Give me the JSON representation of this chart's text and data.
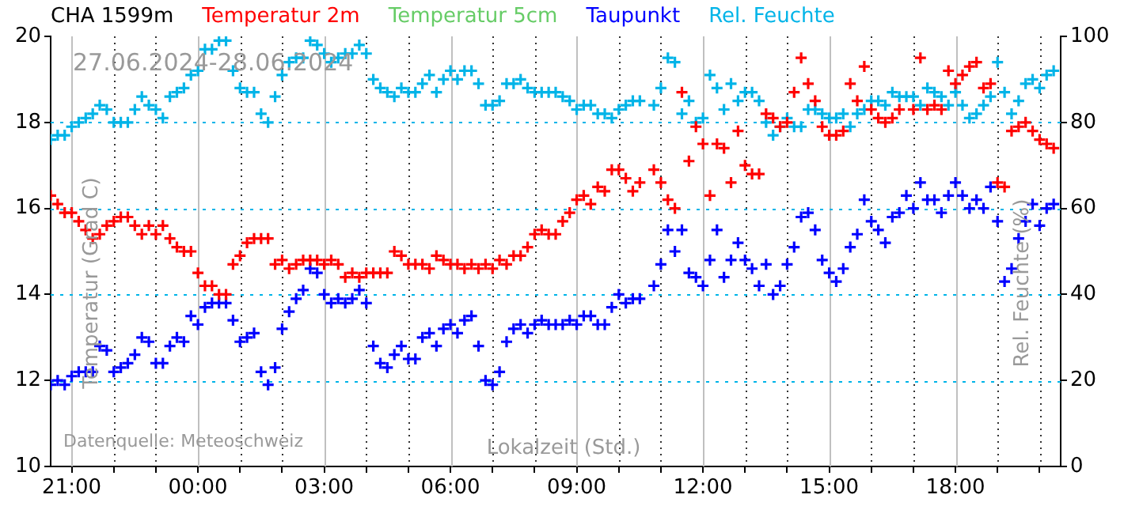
{
  "chart_data": {
    "type": "scatter",
    "title": "CHA  1599m",
    "xlabel": "Lokalzeit (Std.)",
    "ylabel": "Temperatur (Grad C)",
    "y2label": "Rel. Feuchte (%)",
    "annotations": [
      "27.06.2024-28.06.2024",
      "Datenquelle: Meteoschweiz"
    ],
    "xlim": [
      "2024-06-27T20:30",
      "2024-06-28T20:30"
    ],
    "xticks": [
      {
        "value": "2024-06-27T21:00",
        "label": "21:00"
      },
      {
        "value": "2024-06-27T22:00",
        "label": null
      },
      {
        "value": "2024-06-27T23:00",
        "label": null
      },
      {
        "value": "2024-06-28T00:00",
        "label": "00:00"
      },
      {
        "value": "2024-06-28T01:00",
        "label": null
      },
      {
        "value": "2024-06-28T02:00",
        "label": null
      },
      {
        "value": "2024-06-28T03:00",
        "label": "03:00"
      },
      {
        "value": "2024-06-28T04:00",
        "label": null
      },
      {
        "value": "2024-06-28T05:00",
        "label": null
      },
      {
        "value": "2024-06-28T06:00",
        "label": "06:00"
      },
      {
        "value": "2024-06-28T07:00",
        "label": null
      },
      {
        "value": "2024-06-28T08:00",
        "label": null
      },
      {
        "value": "2024-06-28T09:00",
        "label": "09:00"
      },
      {
        "value": "2024-06-28T10:00",
        "label": null
      },
      {
        "value": "2024-06-28T11:00",
        "label": null
      },
      {
        "value": "2024-06-28T12:00",
        "label": "12:00"
      },
      {
        "value": "2024-06-28T13:00",
        "label": null
      },
      {
        "value": "2024-06-28T14:00",
        "label": null
      },
      {
        "value": "2024-06-28T15:00",
        "label": "15:00"
      },
      {
        "value": "2024-06-28T16:00",
        "label": null
      },
      {
        "value": "2024-06-28T17:00",
        "label": null
      },
      {
        "value": "2024-06-28T18:00",
        "label": "18:00"
      },
      {
        "value": "2024-06-28T19:00",
        "label": null
      },
      {
        "value": "2024-06-28T20:00",
        "label": null
      }
    ],
    "ylim": [
      10,
      20
    ],
    "yticks": [
      10,
      12,
      14,
      16,
      18,
      20
    ],
    "y2lim": [
      0,
      100
    ],
    "y2ticks": [
      0,
      20,
      40,
      60,
      80,
      100
    ],
    "grid": true,
    "legend": "top",
    "marker": "cross",
    "x": [
      "2024-06-27T20:30",
      "2024-06-27T20:40",
      "2024-06-27T20:50",
      "2024-06-27T21:00",
      "2024-06-27T21:10",
      "2024-06-27T21:20",
      "2024-06-27T21:30",
      "2024-06-27T21:40",
      "2024-06-27T21:50",
      "2024-06-27T22:00",
      "2024-06-27T22:10",
      "2024-06-27T22:20",
      "2024-06-27T22:30",
      "2024-06-27T22:40",
      "2024-06-27T22:50",
      "2024-06-27T23:00",
      "2024-06-27T23:10",
      "2024-06-27T23:20",
      "2024-06-27T23:30",
      "2024-06-27T23:40",
      "2024-06-27T23:50",
      "2024-06-28T00:00",
      "2024-06-28T00:10",
      "2024-06-28T00:20",
      "2024-06-28T00:30",
      "2024-06-28T00:40",
      "2024-06-28T00:50",
      "2024-06-28T01:00",
      "2024-06-28T01:10",
      "2024-06-28T01:20",
      "2024-06-28T01:30",
      "2024-06-28T01:40",
      "2024-06-28T01:50",
      "2024-06-28T02:00",
      "2024-06-28T02:10",
      "2024-06-28T02:20",
      "2024-06-28T02:30",
      "2024-06-28T02:40",
      "2024-06-28T02:50",
      "2024-06-28T03:00",
      "2024-06-28T03:10",
      "2024-06-28T03:20",
      "2024-06-28T03:30",
      "2024-06-28T03:40",
      "2024-06-28T03:50",
      "2024-06-28T04:00",
      "2024-06-28T04:10",
      "2024-06-28T04:20",
      "2024-06-28T04:30",
      "2024-06-28T04:40",
      "2024-06-28T04:50",
      "2024-06-28T05:00",
      "2024-06-28T05:10",
      "2024-06-28T05:20",
      "2024-06-28T05:30",
      "2024-06-28T05:40",
      "2024-06-28T05:50",
      "2024-06-28T06:00",
      "2024-06-28T06:10",
      "2024-06-28T06:20",
      "2024-06-28T06:30",
      "2024-06-28T06:40",
      "2024-06-28T06:50",
      "2024-06-28T07:00",
      "2024-06-28T07:10",
      "2024-06-28T07:20",
      "2024-06-28T07:30",
      "2024-06-28T07:40",
      "2024-06-28T07:50",
      "2024-06-28T08:00",
      "2024-06-28T08:10",
      "2024-06-28T08:20",
      "2024-06-28T08:30",
      "2024-06-28T08:40",
      "2024-06-28T08:50",
      "2024-06-28T09:00",
      "2024-06-28T09:10",
      "2024-06-28T09:20",
      "2024-06-28T09:30",
      "2024-06-28T09:40",
      "2024-06-28T09:50",
      "2024-06-28T10:00",
      "2024-06-28T10:10",
      "2024-06-28T10:20",
      "2024-06-28T10:30",
      "2024-06-28T10:40",
      "2024-06-28T10:50",
      "2024-06-28T11:00",
      "2024-06-28T11:10",
      "2024-06-28T11:20",
      "2024-06-28T11:30",
      "2024-06-28T11:40",
      "2024-06-28T11:50",
      "2024-06-28T12:00",
      "2024-06-28T12:10",
      "2024-06-28T12:20",
      "2024-06-28T12:30",
      "2024-06-28T12:40",
      "2024-06-28T12:50",
      "2024-06-28T13:00",
      "2024-06-28T13:10",
      "2024-06-28T13:20",
      "2024-06-28T13:30",
      "2024-06-28T13:40",
      "2024-06-28T13:50",
      "2024-06-28T14:00",
      "2024-06-28T14:10",
      "2024-06-28T14:20",
      "2024-06-28T14:30",
      "2024-06-28T14:40",
      "2024-06-28T14:50",
      "2024-06-28T15:00",
      "2024-06-28T15:10",
      "2024-06-28T15:20",
      "2024-06-28T15:30",
      "2024-06-28T15:40",
      "2024-06-28T15:50",
      "2024-06-28T16:00",
      "2024-06-28T16:10",
      "2024-06-28T16:20",
      "2024-06-28T16:30",
      "2024-06-28T16:40",
      "2024-06-28T16:50",
      "2024-06-28T17:00",
      "2024-06-28T17:10",
      "2024-06-28T17:20",
      "2024-06-28T17:30",
      "2024-06-28T17:40",
      "2024-06-28T17:50",
      "2024-06-28T18:00",
      "2024-06-28T18:10",
      "2024-06-28T18:20",
      "2024-06-28T18:30",
      "2024-06-28T18:40",
      "2024-06-28T18:50",
      "2024-06-28T19:00",
      "2024-06-28T19:10",
      "2024-06-28T19:20",
      "2024-06-28T19:30",
      "2024-06-28T19:40",
      "2024-06-28T19:50",
      "2024-06-28T20:00",
      "2024-06-28T20:10",
      "2024-06-28T20:20"
    ],
    "series": [
      {
        "name": "Temperatur 2m",
        "color": "#ff0000",
        "values": [
          16.3,
          16.1,
          15.9,
          15.9,
          15.7,
          15.5,
          15.3,
          15.4,
          15.6,
          15.7,
          15.8,
          15.8,
          15.6,
          15.4,
          15.6,
          15.4,
          15.6,
          15.3,
          15.1,
          15.0,
          15.0,
          14.5,
          14.2,
          14.2,
          14.0,
          14.0,
          14.7,
          14.9,
          15.2,
          15.3,
          15.3,
          15.3,
          14.7,
          14.8,
          14.6,
          14.7,
          14.8,
          14.8,
          14.8,
          14.7,
          14.8,
          14.7,
          14.4,
          14.5,
          14.4,
          14.5,
          14.5,
          14.5,
          14.5,
          15.0,
          14.9,
          14.7,
          14.7,
          14.7,
          14.6,
          14.9,
          14.8,
          14.7,
          14.7,
          14.6,
          14.7,
          14.6,
          14.7,
          14.6,
          14.8,
          14.7,
          14.9,
          14.9,
          15.1,
          15.4,
          15.5,
          15.4,
          15.4,
          15.7,
          15.9,
          16.2,
          16.3,
          16.1,
          16.5,
          16.4,
          16.9,
          16.9,
          16.7,
          16.4,
          16.6,
          null,
          16.9,
          16.6,
          16.2,
          16.0,
          18.7,
          17.1,
          17.9,
          17.5,
          16.3,
          17.5,
          17.4,
          16.6,
          17.8,
          17.0,
          16.8,
          16.8,
          18.2,
          18.1,
          17.9,
          18.0,
          18.7,
          19.5,
          18.9,
          18.5,
          17.9,
          17.7,
          17.7,
          17.8,
          18.9,
          18.5,
          19.3,
          18.3,
          18.1,
          18.0,
          18.1,
          18.3,
          null,
          18.3,
          19.5,
          18.3,
          18.4,
          18.3,
          19.2,
          18.9,
          19.1,
          19.3,
          19.4,
          18.8,
          18.9,
          16.6,
          16.5,
          17.8,
          17.9,
          18.0,
          17.8,
          17.6,
          17.5,
          17.4
        ]
      },
      {
        "name": "Temperatur 5cm",
        "color": "#66cc66",
        "values": [
          null,
          null,
          null,
          null,
          null,
          null,
          null,
          null,
          null,
          null,
          null,
          null,
          null,
          null,
          null,
          null,
          null,
          null,
          null,
          null,
          null,
          null,
          null,
          null,
          null,
          null,
          null,
          null,
          null,
          null,
          null,
          null,
          null,
          null,
          null,
          null,
          null,
          null,
          null,
          null,
          null,
          null,
          null,
          null,
          null,
          null,
          null,
          null,
          null,
          null,
          null,
          null,
          null,
          null,
          null,
          null,
          null,
          null,
          null,
          null,
          null,
          null,
          null,
          null,
          null,
          null,
          null,
          null,
          null,
          null,
          null,
          null,
          null,
          null,
          null,
          null,
          null,
          null,
          null,
          null,
          null,
          null,
          null,
          null,
          null,
          null,
          null,
          null,
          null,
          null,
          null,
          null,
          null,
          null,
          null,
          null,
          null,
          null,
          null,
          null,
          null,
          null,
          null,
          null,
          null,
          null,
          null,
          null,
          null,
          null,
          null,
          null,
          null,
          null,
          null,
          null,
          null,
          null,
          null,
          null,
          null,
          null,
          null,
          null,
          null,
          null,
          null,
          null,
          null,
          null,
          null,
          null,
          null,
          null,
          null,
          null,
          null,
          null,
          null,
          null,
          null,
          null,
          null,
          null
        ]
      },
      {
        "name": "Taupunkt",
        "color": "#0000ff",
        "values": [
          11.9,
          12.0,
          11.9,
          12.1,
          12.2,
          12.2,
          12.2,
          12.8,
          12.7,
          12.2,
          12.3,
          12.4,
          12.6,
          13.0,
          12.9,
          12.4,
          12.4,
          12.8,
          13.0,
          12.9,
          13.5,
          13.3,
          13.7,
          13.8,
          13.8,
          13.8,
          13.4,
          12.9,
          13.0,
          13.1,
          12.2,
          11.9,
          12.3,
          13.2,
          13.6,
          13.9,
          14.1,
          14.6,
          14.5,
          14.0,
          13.8,
          13.9,
          13.8,
          13.9,
          14.1,
          13.8,
          12.8,
          12.4,
          12.3,
          12.6,
          12.8,
          12.5,
          12.5,
          13.0,
          13.1,
          12.8,
          13.2,
          13.3,
          13.1,
          13.4,
          13.5,
          12.8,
          12.0,
          11.9,
          12.2,
          12.9,
          13.2,
          13.3,
          13.1,
          13.3,
          13.4,
          13.3,
          13.3,
          13.3,
          13.4,
          13.3,
          13.5,
          13.5,
          13.3,
          13.3,
          13.7,
          14.0,
          13.8,
          13.9,
          13.9,
          null,
          14.2,
          14.7,
          15.5,
          15.0,
          15.5,
          14.5,
          14.4,
          14.2,
          14.8,
          15.5,
          14.4,
          14.8,
          15.2,
          14.8,
          14.6,
          14.2,
          14.7,
          14.0,
          14.2,
          14.7,
          15.1,
          15.8,
          15.9,
          15.5,
          14.8,
          14.5,
          14.3,
          14.6,
          15.1,
          15.4,
          16.2,
          15.7,
          15.5,
          15.2,
          15.8,
          15.9,
          16.3,
          16.0,
          16.6,
          16.2,
          16.2,
          15.9,
          16.3,
          16.6,
          16.3,
          16.0,
          16.2,
          16.0,
          16.5,
          15.7,
          14.3,
          14.6,
          15.3,
          15.7,
          16.1,
          15.6,
          16.0,
          16.1
        ]
      },
      {
        "name": "Rel. Feuchte",
        "color": "#00b4e8",
        "axis": "y2",
        "values": [
          76,
          77,
          77,
          79,
          80,
          81,
          82,
          84,
          83,
          80,
          80,
          80,
          83,
          86,
          84,
          83,
          81,
          86,
          87,
          88,
          91,
          92,
          97,
          97,
          99,
          99,
          92,
          88,
          87,
          87,
          82,
          80,
          86,
          91,
          94,
          95,
          95,
          99,
          98,
          96,
          94,
          95,
          96,
          96,
          98,
          96,
          90,
          88,
          87,
          86,
          88,
          87,
          87,
          89,
          91,
          87,
          90,
          92,
          90,
          92,
          92,
          89,
          84,
          84,
          85,
          89,
          89,
          90,
          88,
          87,
          87,
          87,
          87,
          86,
          85,
          83,
          84,
          84,
          82,
          82,
          81,
          83,
          84,
          85,
          85,
          null,
          84,
          88,
          95,
          94,
          82,
          85,
          80,
          81,
          91,
          88,
          83,
          89,
          85,
          87,
          87,
          85,
          80,
          77,
          79,
          81,
          79,
          79,
          83,
          83,
          82,
          81,
          81,
          82,
          79,
          82,
          83,
          85,
          85,
          84,
          87,
          86,
          86,
          86,
          84,
          88,
          87,
          86,
          84,
          87,
          84,
          81,
          82,
          84,
          86,
          94,
          87,
          82,
          85,
          89,
          90,
          88,
          91,
          92
        ]
      }
    ]
  }
}
